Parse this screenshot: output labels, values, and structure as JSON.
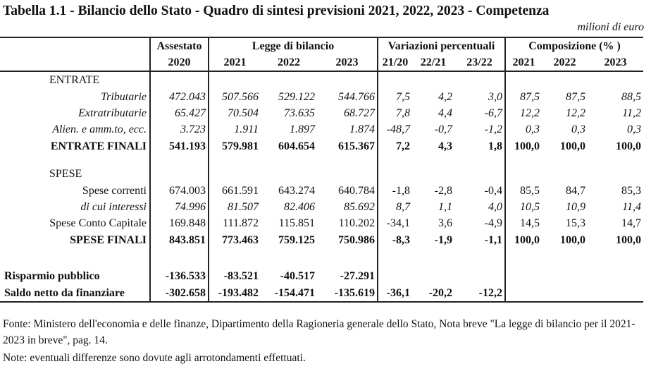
{
  "title": "Tabella 1.1 - Bilancio dello Stato - Quadro di sintesi previsioni 2021, 2022, 2023 - Competenza",
  "unit": "milioni di euro",
  "headers": {
    "assestato": "Assestato",
    "assestato_year": "2020",
    "legge": "Legge di bilancio",
    "legge_years": [
      "2021",
      "2022",
      "2023"
    ],
    "variazioni": "Variazioni percentuali",
    "variazioni_periods": [
      "21/20",
      "22/21",
      "23/22"
    ],
    "composizione": "Composizione (% )",
    "composizione_years": [
      "2021",
      "2022",
      "2023"
    ]
  },
  "sections": {
    "entrate": "ENTRATE",
    "spese": "SPESE"
  },
  "rows": {
    "tributarie": {
      "label": "Tributarie",
      "values": [
        "472.043",
        "507.566",
        "529.122",
        "544.766",
        "7,5",
        "4,2",
        "3,0",
        "87,5",
        "87,5",
        "88,5"
      ]
    },
    "extratributarie": {
      "label": "Extratributarie",
      "values": [
        "65.427",
        "70.504",
        "73.635",
        "68.727",
        "7,8",
        "4,4",
        "-6,7",
        "12,2",
        "12,2",
        "11,2"
      ]
    },
    "alien": {
      "label": "Alien. e amm.to, ecc.",
      "values": [
        "3.723",
        "1.911",
        "1.897",
        "1.874",
        "-48,7",
        "-0,7",
        "-1,2",
        "0,3",
        "0,3",
        "0,3"
      ]
    },
    "entrate_finali": {
      "label": "ENTRATE FINALI",
      "values": [
        "541.193",
        "579.981",
        "604.654",
        "615.367",
        "7,2",
        "4,3",
        "1,8",
        "100,0",
        "100,0",
        "100,0"
      ]
    },
    "spese_correnti": {
      "label": "Spese correnti",
      "values": [
        "674.003",
        "661.591",
        "643.274",
        "640.784",
        "-1,8",
        "-2,8",
        "-0,4",
        "85,5",
        "84,7",
        "85,3"
      ]
    },
    "interessi": {
      "label": "di cui interessi",
      "values": [
        "74.996",
        "81.507",
        "82.406",
        "85.692",
        "8,7",
        "1,1",
        "4,0",
        "10,5",
        "10,9",
        "11,4"
      ]
    },
    "conto_capitale": {
      "label": "Spese Conto Capitale",
      "values": [
        "169.848",
        "111.872",
        "115.851",
        "110.202",
        "-34,1",
        "3,6",
        "-4,9",
        "14,5",
        "15,3",
        "14,7"
      ]
    },
    "spese_finali": {
      "label": "SPESE FINALI",
      "values": [
        "843.851",
        "773.463",
        "759.125",
        "750.986",
        "-8,3",
        "-1,9",
        "-1,1",
        "100,0",
        "100,0",
        "100,0"
      ]
    },
    "risparmio": {
      "label": "Risparmio pubblico",
      "values": [
        "-136.533",
        "-83.521",
        "-40.517",
        "-27.291"
      ]
    },
    "saldo": {
      "label": "Saldo netto da finanziare",
      "values": [
        "-302.658",
        "-193.482",
        "-154.471",
        "-135.619",
        "-36,1",
        "-20,2",
        "-12,2"
      ]
    }
  },
  "footer": {
    "fonte": "Fonte: Ministero dell'economia e delle finanze, Dipartimento della Ragioneria generale dello Stato, Nota breve \"La legge di bilancio per il 2021-2023 in breve\", pag. 14.",
    "note": "Note: eventuali differenze sono dovute agli arrotondamenti effettuati."
  }
}
